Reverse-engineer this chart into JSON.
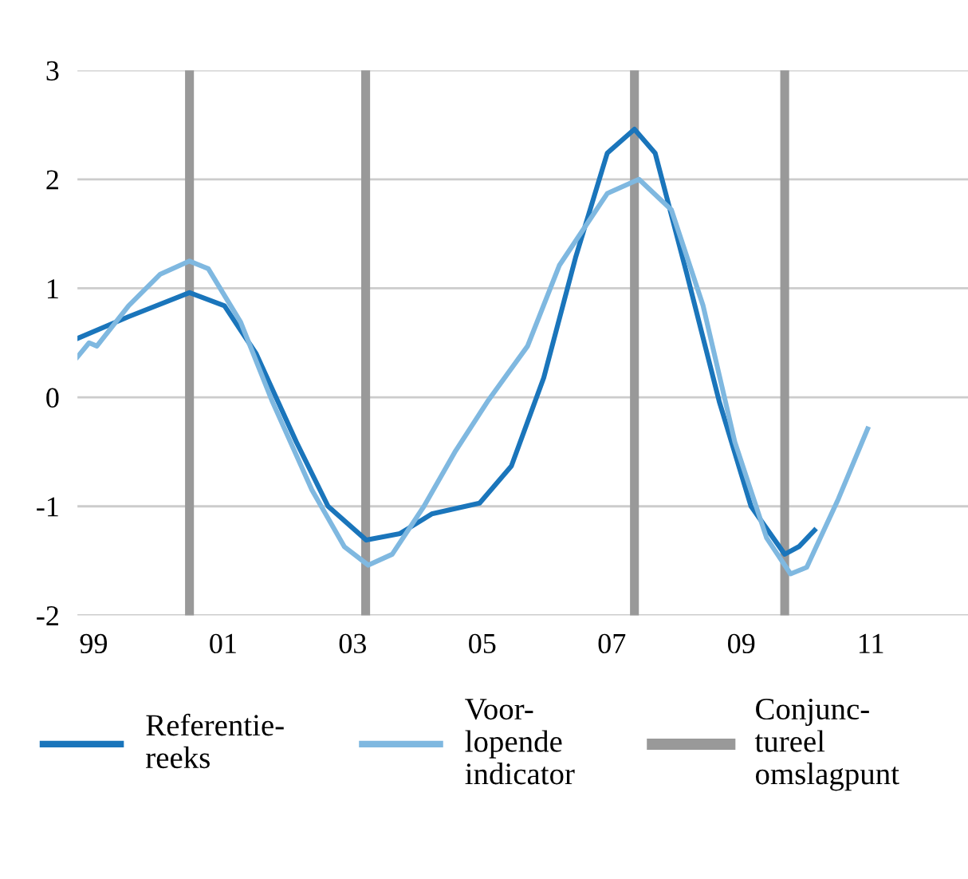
{
  "chart_data": {
    "type": "line",
    "xlim": [
      1998.75,
      2012.5
    ],
    "xticks": [
      {
        "value": 1999,
        "label": "99"
      },
      {
        "value": 2001,
        "label": "01"
      },
      {
        "value": 2003,
        "label": "03"
      },
      {
        "value": 2005,
        "label": "05"
      },
      {
        "value": 2007,
        "label": "07"
      },
      {
        "value": 2009,
        "label": "09"
      },
      {
        "value": 2011,
        "label": "11"
      }
    ],
    "ylim": [
      -2,
      3
    ],
    "yticks": [
      -2,
      -1,
      0,
      1,
      2,
      3
    ],
    "grid": "y",
    "legend": "bottom",
    "marker": "none",
    "line_style": "solid",
    "series": [
      {
        "name": "Referentie-\nreeks",
        "color": "#1a75bb",
        "x": [
          1998.75,
          1999.54,
          2000.48,
          2001.02,
          2001.51,
          2002.13,
          2002.62,
          2003.21,
          2003.73,
          2004.22,
          2004.96,
          2005.45,
          2005.95,
          2006.44,
          2006.93,
          2007.35,
          2007.67,
          2008.16,
          2008.66,
          2009.15,
          2009.67,
          2009.89,
          2010.13
        ],
        "values": [
          0.54,
          0.74,
          0.96,
          0.84,
          0.4,
          -0.41,
          -1.0,
          -1.31,
          -1.25,
          -1.07,
          -0.97,
          -0.63,
          0.18,
          1.28,
          2.24,
          2.46,
          2.24,
          1.13,
          -0.04,
          -1.0,
          -1.44,
          -1.37,
          -1.22
        ]
      },
      {
        "name": "Voor-\nlopende\nindicator",
        "color": "#7fb8e0",
        "x": [
          1998.75,
          1998.93,
          1999.05,
          1999.54,
          2000.03,
          2000.48,
          2000.77,
          2001.27,
          2001.76,
          2002.37,
          2002.87,
          2003.24,
          2003.61,
          2004.1,
          2004.59,
          2005.08,
          2005.7,
          2006.19,
          2006.93,
          2007.42,
          2007.92,
          2008.41,
          2008.9,
          2009.39,
          2009.76,
          2010.01,
          2010.5,
          2010.95
        ],
        "values": [
          0.37,
          0.5,
          0.47,
          0.84,
          1.13,
          1.25,
          1.18,
          0.69,
          -0.04,
          -0.85,
          -1.37,
          -1.54,
          -1.44,
          -1.0,
          -0.49,
          -0.04,
          0.47,
          1.21,
          1.87,
          2.0,
          1.72,
          0.84,
          -0.41,
          -1.29,
          -1.62,
          -1.56,
          -0.93,
          -0.29
        ]
      }
    ],
    "ref_lines": [
      {
        "axis": "x",
        "value": 2000.48,
        "label": "Conjunc-\ntureel\nomslagpunt",
        "color": "#999999"
      },
      {
        "axis": "x",
        "value": 2003.2,
        "label": null,
        "color": "#999999"
      },
      {
        "axis": "x",
        "value": 2007.35,
        "label": null,
        "color": "#999999"
      },
      {
        "axis": "x",
        "value": 2009.67,
        "label": null,
        "color": "#999999"
      }
    ]
  }
}
